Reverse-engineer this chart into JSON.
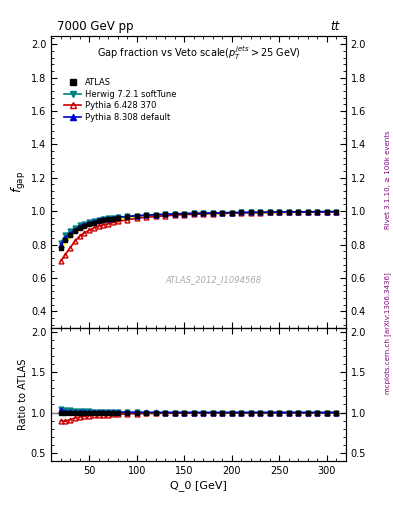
{
  "title_top": "7000 GeV pp",
  "title_right": "tt",
  "plot_title": "Gap fraction vs Veto scale(p_T^{jets}>25 GeV)",
  "xlabel": "Q_0 [GeV]",
  "ylabel_main": "f_{gap}",
  "ylabel_ratio": "Ratio to ATLAS",
  "right_label": "mcplots.cern.ch [arXiv:1306.3436]",
  "rivet_label": "Rivet 3.1.10, ≥ 100k events",
  "watermark": "ATLAS_2012_I1094568",
  "xlim": [
    10,
    320
  ],
  "ylim_main": [
    0.3,
    2.05
  ],
  "ylim_ratio": [
    0.4,
    2.05
  ],
  "yticks_main": [
    0.4,
    0.6,
    0.8,
    1.0,
    1.2,
    1.4,
    1.6,
    1.8,
    2.0
  ],
  "yticks_ratio": [
    0.5,
    1.0,
    1.5,
    2.0
  ],
  "Q0": [
    20,
    25,
    30,
    35,
    40,
    45,
    50,
    55,
    60,
    65,
    70,
    75,
    80,
    90,
    100,
    110,
    120,
    130,
    140,
    150,
    160,
    170,
    180,
    190,
    200,
    210,
    220,
    230,
    240,
    250,
    260,
    270,
    280,
    290,
    300,
    310
  ],
  "atlas_y": [
    0.78,
    0.83,
    0.855,
    0.88,
    0.9,
    0.91,
    0.92,
    0.93,
    0.94,
    0.945,
    0.95,
    0.955,
    0.96,
    0.965,
    0.97,
    0.975,
    0.978,
    0.981,
    0.983,
    0.985,
    0.987,
    0.988,
    0.989,
    0.99,
    0.991,
    0.992,
    0.993,
    0.993,
    0.994,
    0.994,
    0.995,
    0.995,
    0.996,
    0.996,
    0.997,
    0.997
  ],
  "herwig_y": [
    0.81,
    0.855,
    0.88,
    0.9,
    0.915,
    0.925,
    0.933,
    0.94,
    0.947,
    0.952,
    0.956,
    0.96,
    0.963,
    0.968,
    0.972,
    0.975,
    0.978,
    0.981,
    0.983,
    0.985,
    0.987,
    0.988,
    0.989,
    0.99,
    0.991,
    0.992,
    0.993,
    0.993,
    0.994,
    0.994,
    0.995,
    0.995,
    0.996,
    0.996,
    0.997,
    0.997
  ],
  "pythia6_y": [
    0.7,
    0.74,
    0.78,
    0.82,
    0.85,
    0.87,
    0.885,
    0.9,
    0.91,
    0.918,
    0.925,
    0.932,
    0.938,
    0.948,
    0.957,
    0.963,
    0.968,
    0.972,
    0.976,
    0.979,
    0.981,
    0.983,
    0.985,
    0.986,
    0.988,
    0.989,
    0.99,
    0.991,
    0.992,
    0.993,
    0.993,
    0.994,
    0.994,
    0.995,
    0.995,
    0.996
  ],
  "pythia8_y": [
    0.8,
    0.84,
    0.865,
    0.888,
    0.905,
    0.918,
    0.928,
    0.937,
    0.944,
    0.95,
    0.955,
    0.959,
    0.963,
    0.968,
    0.972,
    0.976,
    0.979,
    0.981,
    0.983,
    0.985,
    0.987,
    0.988,
    0.989,
    0.99,
    0.991,
    0.992,
    0.993,
    0.993,
    0.994,
    0.994,
    0.995,
    0.995,
    0.996,
    0.996,
    0.997,
    0.997
  ],
  "atlas_err": [
    0.015,
    0.012,
    0.01,
    0.009,
    0.008,
    0.007,
    0.007,
    0.006,
    0.006,
    0.005,
    0.005,
    0.005,
    0.004,
    0.004,
    0.004,
    0.003,
    0.003,
    0.003,
    0.003,
    0.002,
    0.002,
    0.002,
    0.002,
    0.002,
    0.002,
    0.001,
    0.001,
    0.001,
    0.001,
    0.001,
    0.001,
    0.001,
    0.001,
    0.001,
    0.001,
    0.001
  ],
  "color_atlas": "#000000",
  "color_herwig": "#008080",
  "color_pythia6": "#cc0000",
  "color_pythia8": "#0000cc",
  "color_ratio_line": "#808080",
  "color_atlas_band": "#ffff00",
  "bg_color": "#ffffff"
}
